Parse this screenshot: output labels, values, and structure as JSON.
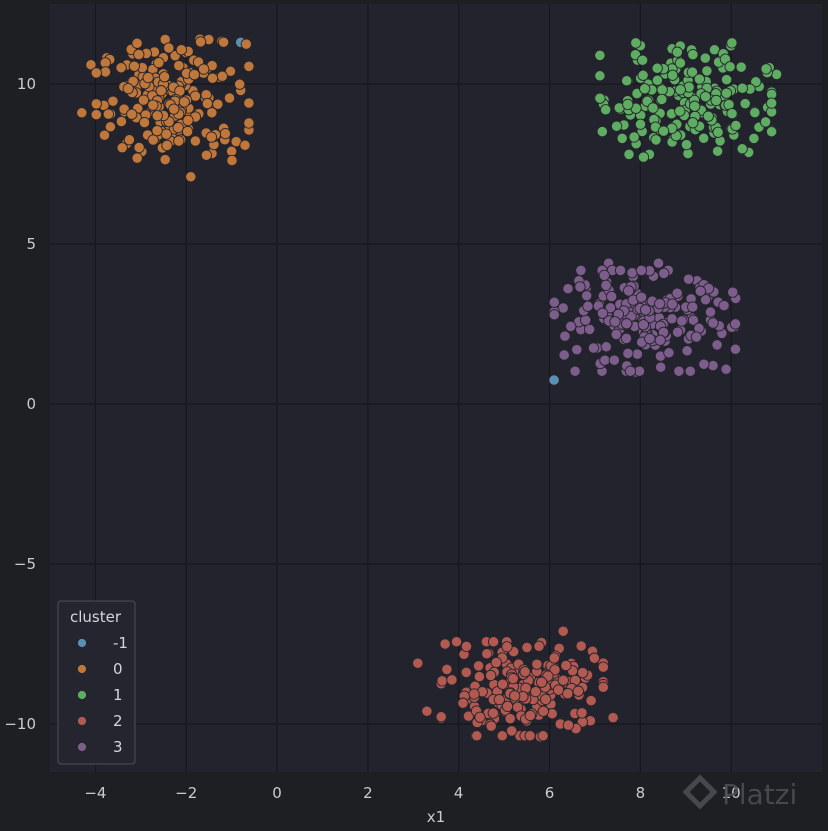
{
  "chart_data": {
    "type": "scatter",
    "title": "",
    "xlabel": "x1",
    "ylabel": "",
    "xlim": [
      -5.0,
      12.0
    ],
    "ylim": [
      -11.5,
      12.5
    ],
    "xticks": [
      -4,
      -2,
      0,
      2,
      4,
      6,
      8,
      10
    ],
    "yticks": [
      -10,
      -5,
      0,
      5,
      10
    ],
    "grid": true,
    "legend": {
      "title": "cluster",
      "placement": "lower-left"
    },
    "series": [
      {
        "name": "-1",
        "color": "#5b8fb3",
        "center": null,
        "spread": null,
        "count": 2,
        "points": [
          [
            -0.8,
            11.3
          ],
          [
            6.1,
            0.75
          ]
        ]
      },
      {
        "name": "0",
        "color": "#c0773c",
        "center": [
          -2.3,
          9.5
        ],
        "spread": [
          0.8,
          0.9
        ],
        "count": 200,
        "points": [
          [
            -4.3,
            9.1
          ],
          [
            -4.1,
            10.6
          ],
          [
            -3.8,
            8.4
          ],
          [
            -1.7,
            11.4
          ],
          [
            -0.8,
            9.8
          ],
          [
            -1.9,
            7.1
          ],
          [
            -0.9,
            8.2
          ],
          [
            -1.0,
            7.9
          ],
          [
            -2.7,
            11.0
          ]
        ]
      },
      {
        "name": "1",
        "color": "#5fad63",
        "center": [
          9.0,
          9.5
        ],
        "spread": [
          0.9,
          0.85
        ],
        "count": 200,
        "points": [
          [
            7.2,
            9.5
          ],
          [
            7.6,
            8.3
          ],
          [
            8.0,
            11.2
          ],
          [
            8.2,
            7.8
          ],
          [
            10.5,
            8.3
          ],
          [
            11.0,
            10.3
          ],
          [
            9.7,
            7.9
          ],
          [
            8.7,
            11.1
          ]
        ]
      },
      {
        "name": "2",
        "color": "#b25a52",
        "center": [
          5.4,
          -8.9
        ],
        "spread": [
          0.85,
          0.7
        ],
        "count": 200,
        "points": [
          [
            3.1,
            -8.1
          ],
          [
            3.3,
            -9.6
          ],
          [
            3.7,
            -7.5
          ],
          [
            6.3,
            -7.1
          ],
          [
            7.4,
            -9.8
          ],
          [
            5.8,
            -10.4
          ],
          [
            6.9,
            -9.9
          ],
          [
            4.5,
            -9.9
          ]
        ]
      },
      {
        "name": "3",
        "color": "#7d5d8c",
        "center": [
          8.1,
          2.6
        ],
        "spread": [
          0.95,
          0.75
        ],
        "count": 200,
        "points": [
          [
            6.3,
            3.0
          ],
          [
            6.6,
            1.7
          ],
          [
            7.3,
            4.4
          ],
          [
            8.4,
            4.4
          ],
          [
            10.1,
            3.3
          ],
          [
            9.6,
            1.2
          ],
          [
            7.9,
            1.0
          ],
          [
            6.8,
            3.6
          ]
        ]
      }
    ]
  },
  "watermark": {
    "text": "Platzi"
  }
}
